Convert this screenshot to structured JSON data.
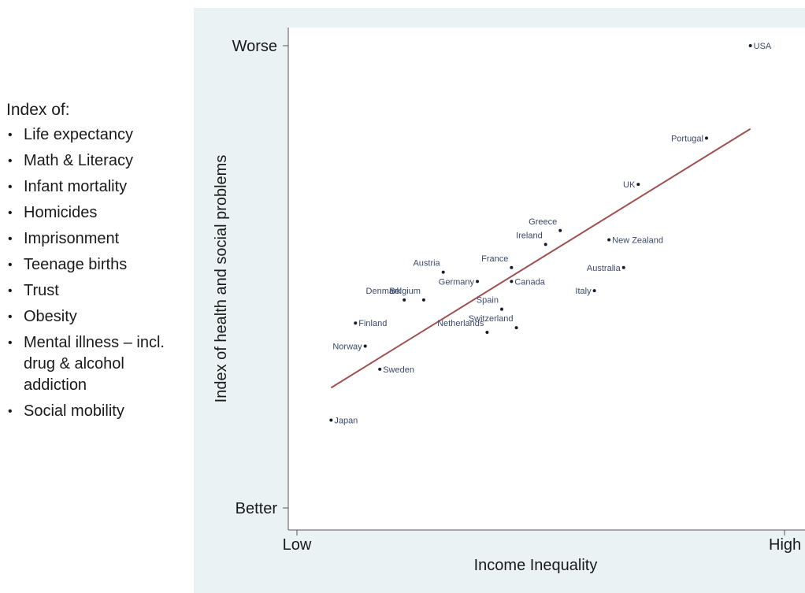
{
  "legend": {
    "title": "Index of:",
    "items": [
      "Life expectancy",
      "Math & Literacy",
      "Infant mortality",
      "Homicides",
      "Imprisonment",
      "Teenage births",
      "Trust",
      "Obesity",
      "Mental illness – incl. drug & alcohol addiction",
      "Social mobility"
    ]
  },
  "chart_data": {
    "type": "scatter",
    "xlabel": "Income Inequality",
    "ylabel": "Index of health and social problems",
    "xlim": [
      0,
      100
    ],
    "ylim": [
      0,
      100
    ],
    "x_ticks": [
      {
        "value": 0,
        "label": "Low"
      },
      {
        "value": 100,
        "label": "High"
      }
    ],
    "y_ticks": [
      {
        "value": 0,
        "label": "Better"
      },
      {
        "value": 100,
        "label": "Worse"
      }
    ],
    "grid": false,
    "trend_line": {
      "x": [
        7,
        93
      ],
      "y": [
        26,
        82
      ],
      "color": "#a05050"
    },
    "points": [
      {
        "name": "USA",
        "x": 93,
        "y": 100
      },
      {
        "name": "Portugal",
        "x": 84,
        "y": 80
      },
      {
        "name": "UK",
        "x": 70,
        "y": 70
      },
      {
        "name": "Greece",
        "x": 54,
        "y": 60
      },
      {
        "name": "New Zealand",
        "x": 64,
        "y": 58
      },
      {
        "name": "Ireland",
        "x": 51,
        "y": 57
      },
      {
        "name": "Austria",
        "x": 30,
        "y": 51
      },
      {
        "name": "France",
        "x": 44,
        "y": 52
      },
      {
        "name": "Australia",
        "x": 67,
        "y": 52
      },
      {
        "name": "Germany",
        "x": 37,
        "y": 49
      },
      {
        "name": "Canada",
        "x": 44,
        "y": 49
      },
      {
        "name": "Denmark",
        "x": 22,
        "y": 45
      },
      {
        "name": "Italy",
        "x": 61,
        "y": 47
      },
      {
        "name": "Belgium",
        "x": 26,
        "y": 45
      },
      {
        "name": "Spain",
        "x": 42,
        "y": 43
      },
      {
        "name": "Switzerland",
        "x": 45,
        "y": 39
      },
      {
        "name": "Finland",
        "x": 12,
        "y": 40
      },
      {
        "name": "Netherlands",
        "x": 39,
        "y": 38
      },
      {
        "name": "Norway",
        "x": 14,
        "y": 35
      },
      {
        "name": "Sweden",
        "x": 17,
        "y": 30
      },
      {
        "name": "Japan",
        "x": 7,
        "y": 19
      }
    ],
    "point_color": "#1a1a2a"
  }
}
